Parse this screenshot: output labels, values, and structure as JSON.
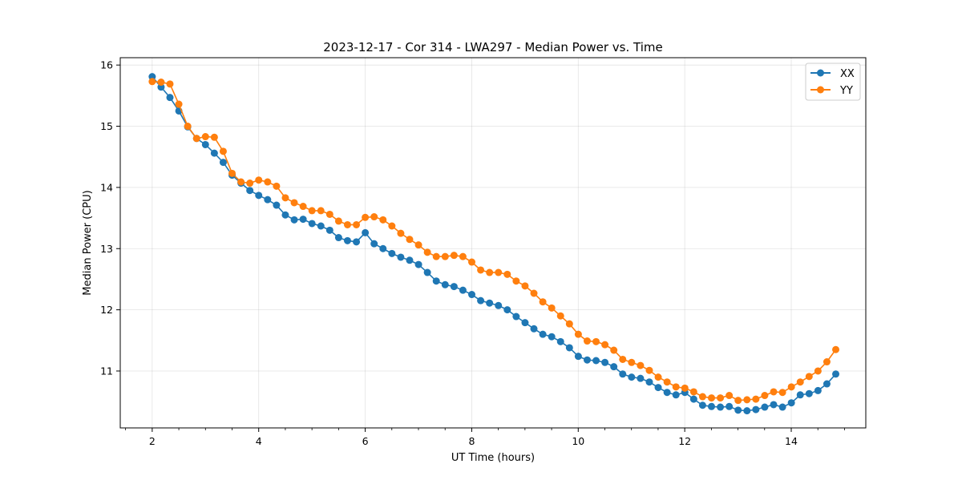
{
  "chart_data": {
    "type": "line",
    "title": "2023-12-17 - Cor 314 - LWA297 - Median Power vs. Time",
    "xlabel": "UT Time (hours)",
    "ylabel": "Median Power (CPU)",
    "xlim": [
      1.4,
      15.4
    ],
    "ylim": [
      10.07,
      16.12
    ],
    "xticks": [
      2,
      4,
      6,
      8,
      10,
      12,
      14
    ],
    "yticks": [
      11,
      12,
      13,
      14,
      15,
      16
    ],
    "grid": true,
    "legend_position": "top-right",
    "x_start": 2.0,
    "x_step": 0.1667,
    "series": [
      {
        "name": "XX",
        "color": "#1f77b4",
        "values": [
          15.81,
          15.64,
          15.47,
          15.25,
          14.99,
          14.8,
          14.7,
          14.56,
          14.41,
          14.2,
          14.07,
          13.95,
          13.87,
          13.8,
          13.71,
          13.55,
          13.47,
          13.48,
          13.41,
          13.37,
          13.3,
          13.18,
          13.13,
          13.11,
          13.26,
          13.08,
          13.0,
          12.92,
          12.86,
          12.81,
          12.74,
          12.61,
          12.47,
          12.41,
          12.38,
          12.32,
          12.25,
          12.15,
          12.11,
          12.07,
          12.0,
          11.89,
          11.79,
          11.69,
          11.6,
          11.56,
          11.48,
          11.38,
          11.24,
          11.18,
          11.17,
          11.14,
          11.07,
          10.95,
          10.9,
          10.88,
          10.82,
          10.73,
          10.65,
          10.61,
          10.65,
          10.54,
          10.44,
          10.42,
          10.41,
          10.42,
          10.36,
          10.35,
          10.37,
          10.41,
          10.45,
          10.41,
          10.48,
          10.61,
          10.63,
          10.68,
          10.79,
          10.95
        ]
      },
      {
        "name": "YY",
        "color": "#ff7f0e",
        "values": [
          15.73,
          15.72,
          15.69,
          15.36,
          15.0,
          14.8,
          14.83,
          14.82,
          14.59,
          14.23,
          14.09,
          14.07,
          14.12,
          14.09,
          14.02,
          13.83,
          13.75,
          13.69,
          13.62,
          13.62,
          13.56,
          13.45,
          13.39,
          13.39,
          13.51,
          13.52,
          13.47,
          13.37,
          13.25,
          13.15,
          13.06,
          12.94,
          12.87,
          12.87,
          12.89,
          12.87,
          12.78,
          12.65,
          12.61,
          12.61,
          12.58,
          12.47,
          12.39,
          12.27,
          12.13,
          12.03,
          11.9,
          11.77,
          11.6,
          11.49,
          11.48,
          11.43,
          11.34,
          11.19,
          11.14,
          11.09,
          11.01,
          10.9,
          10.82,
          10.74,
          10.72,
          10.66,
          10.58,
          10.56,
          10.56,
          10.6,
          10.52,
          10.53,
          10.54,
          10.6,
          10.66,
          10.65,
          10.74,
          10.82,
          10.91,
          11.0,
          11.15,
          11.35
        ]
      }
    ]
  }
}
